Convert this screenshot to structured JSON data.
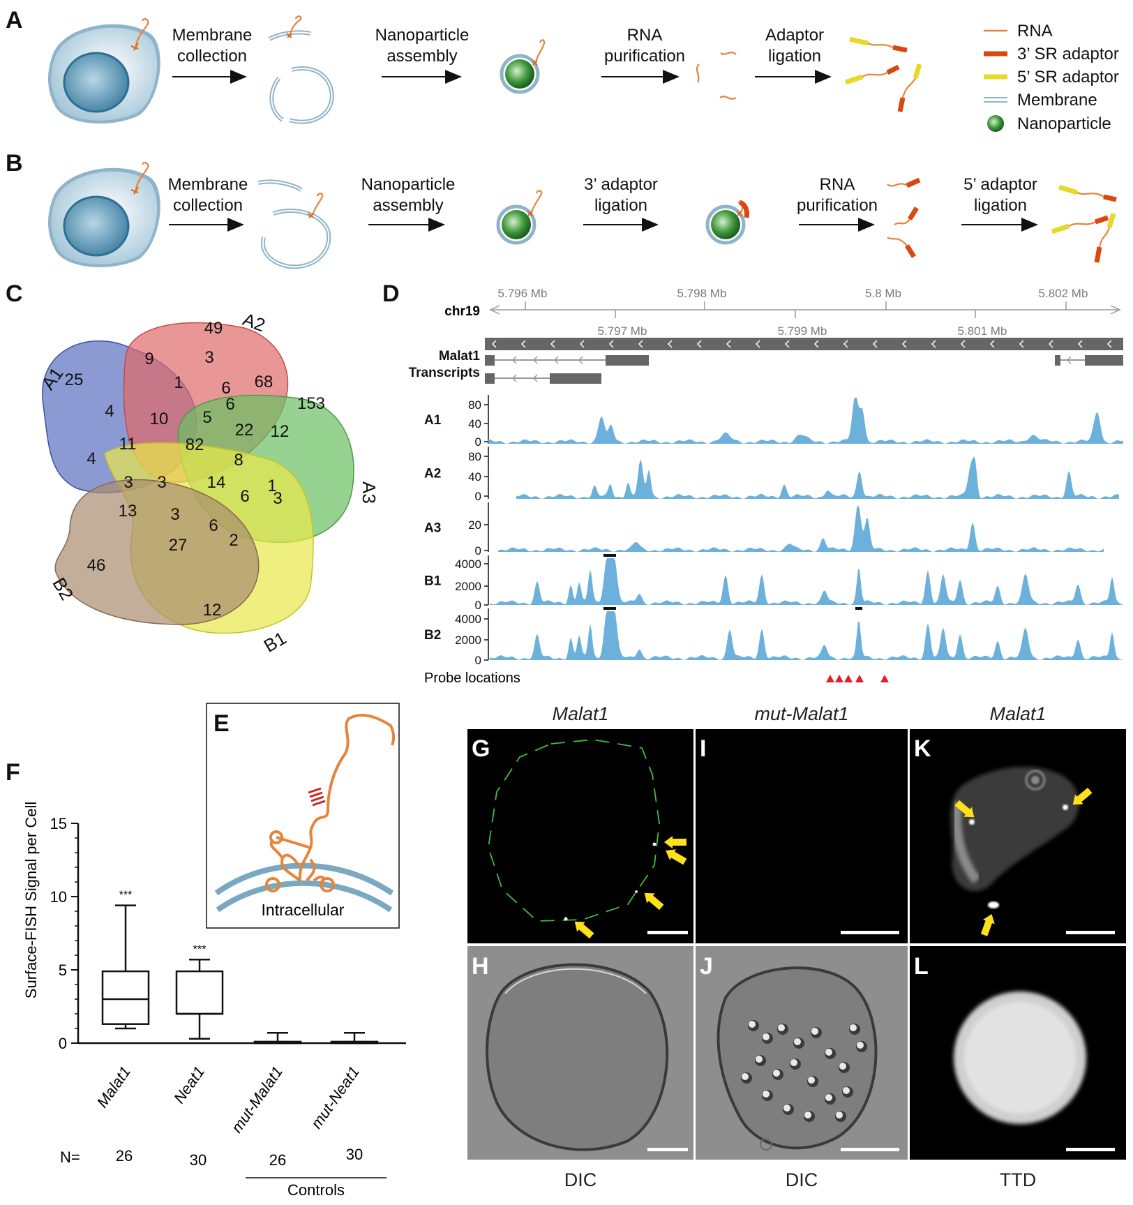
{
  "panels": {
    "A": {
      "letter": "A",
      "steps": [
        "Membrane\ncollection",
        "Nanoparticle\nassembly",
        "RNA\npurification",
        "Adaptor\nligation"
      ],
      "legend": [
        {
          "label": "RNA",
          "color": "#e8833a"
        },
        {
          "label": "3’ SR adaptor",
          "color": "#d9480f"
        },
        {
          "label": "5’ SR adaptor",
          "color": "#e7d92b"
        },
        {
          "label": "Membrane",
          "color": "#8fb4c9"
        },
        {
          "label": "Nanoparticle",
          "color": "#2e7d32"
        }
      ]
    },
    "B": {
      "letter": "B",
      "steps": [
        "Membrane\ncollection",
        "Nanoparticle\nassembly",
        "3’ adaptor\nligation",
        "RNA\npurification",
        "5’ adaptor\nligation"
      ]
    },
    "C": {
      "letter": "C",
      "sets": [
        {
          "name": "A1",
          "color": "#5b6fc2"
        },
        {
          "name": "A2",
          "color": "#de6a6a"
        },
        {
          "name": "A3",
          "color": "#6ac063"
        },
        {
          "name": "B1",
          "color": "#e8e84a"
        },
        {
          "name": "B2",
          "color": "#a88c6e"
        }
      ],
      "regions": [
        "25",
        "49",
        "153",
        "12",
        "46",
        "9",
        "3",
        "1",
        "6",
        "68",
        "6",
        "4",
        "5",
        "22",
        "10",
        "12",
        "11",
        "82",
        "8",
        "1",
        "4",
        "3",
        "3",
        "14",
        "6",
        "3",
        "13",
        "3",
        "6",
        "2",
        "27"
      ]
    },
    "D": {
      "letter": "D",
      "chrom": "chr19",
      "top_ticks": [
        "5.796 Mb",
        "5.798 Mb",
        "5.8 Mb",
        "5.802 Mb"
      ],
      "bottom_ticks": [
        "5.797 Mb",
        "5.799 Mb",
        "5.801 Mb"
      ],
      "gene_label_1": "Malat1",
      "gene_label_2": "Transcripts",
      "tracks": [
        {
          "name": "A1",
          "ticks": [
            "80",
            "40",
            "0"
          ]
        },
        {
          "name": "A2",
          "ticks": [
            "80",
            "40",
            "0"
          ]
        },
        {
          "name": "A3",
          "ticks": [
            "20",
            "0"
          ]
        },
        {
          "name": "B1",
          "ticks": [
            "4000",
            "2000",
            "0"
          ]
        },
        {
          "name": "B2",
          "ticks": [
            "4000",
            "2000",
            "0"
          ]
        }
      ],
      "probe_label": "Probe locations"
    },
    "E": {
      "letter": "E",
      "label": "Intracellular"
    },
    "F": {
      "letter": "F",
      "ylabel": "Surface-FISH Signal per Cell",
      "yticks": [
        "15",
        "10",
        "5",
        "0"
      ],
      "categories": [
        "Malat1",
        "Neat1",
        "mut-Malat1",
        "mut-Neat1"
      ],
      "n_label": "N=",
      "n_values": [
        "26",
        "30",
        "26",
        "30"
      ],
      "sig": [
        "***",
        "***"
      ],
      "controls_label": "Controls"
    },
    "micro": {
      "titles": [
        "Malat1",
        "mut-Malat1",
        "Malat1"
      ],
      "letters_top": [
        "G",
        "I",
        "K"
      ],
      "letters_bottom": [
        "H",
        "J",
        "L"
      ],
      "captions": [
        "DIC",
        "DIC",
        "TTD"
      ]
    }
  },
  "chart_data": {
    "type": "box",
    "title": "",
    "ylabel": "Surface-FISH Signal per Cell",
    "ylim": [
      0,
      15
    ],
    "categories": [
      "Malat1",
      "Neat1",
      "mut-Malat1",
      "mut-Neat1"
    ],
    "boxes": [
      {
        "min": 1.0,
        "q1": 1.3,
        "median": 3.0,
        "q3": 4.9,
        "max": 9.4
      },
      {
        "min": 0.3,
        "q1": 2.0,
        "median": 2.0,
        "q3": 4.9,
        "max": 5.7
      },
      {
        "min": 0,
        "q1": 0,
        "median": 0,
        "q3": 0.1,
        "max": 0.7
      },
      {
        "min": 0,
        "q1": 0,
        "median": 0,
        "q3": 0.1,
        "max": 0.7
      }
    ]
  }
}
